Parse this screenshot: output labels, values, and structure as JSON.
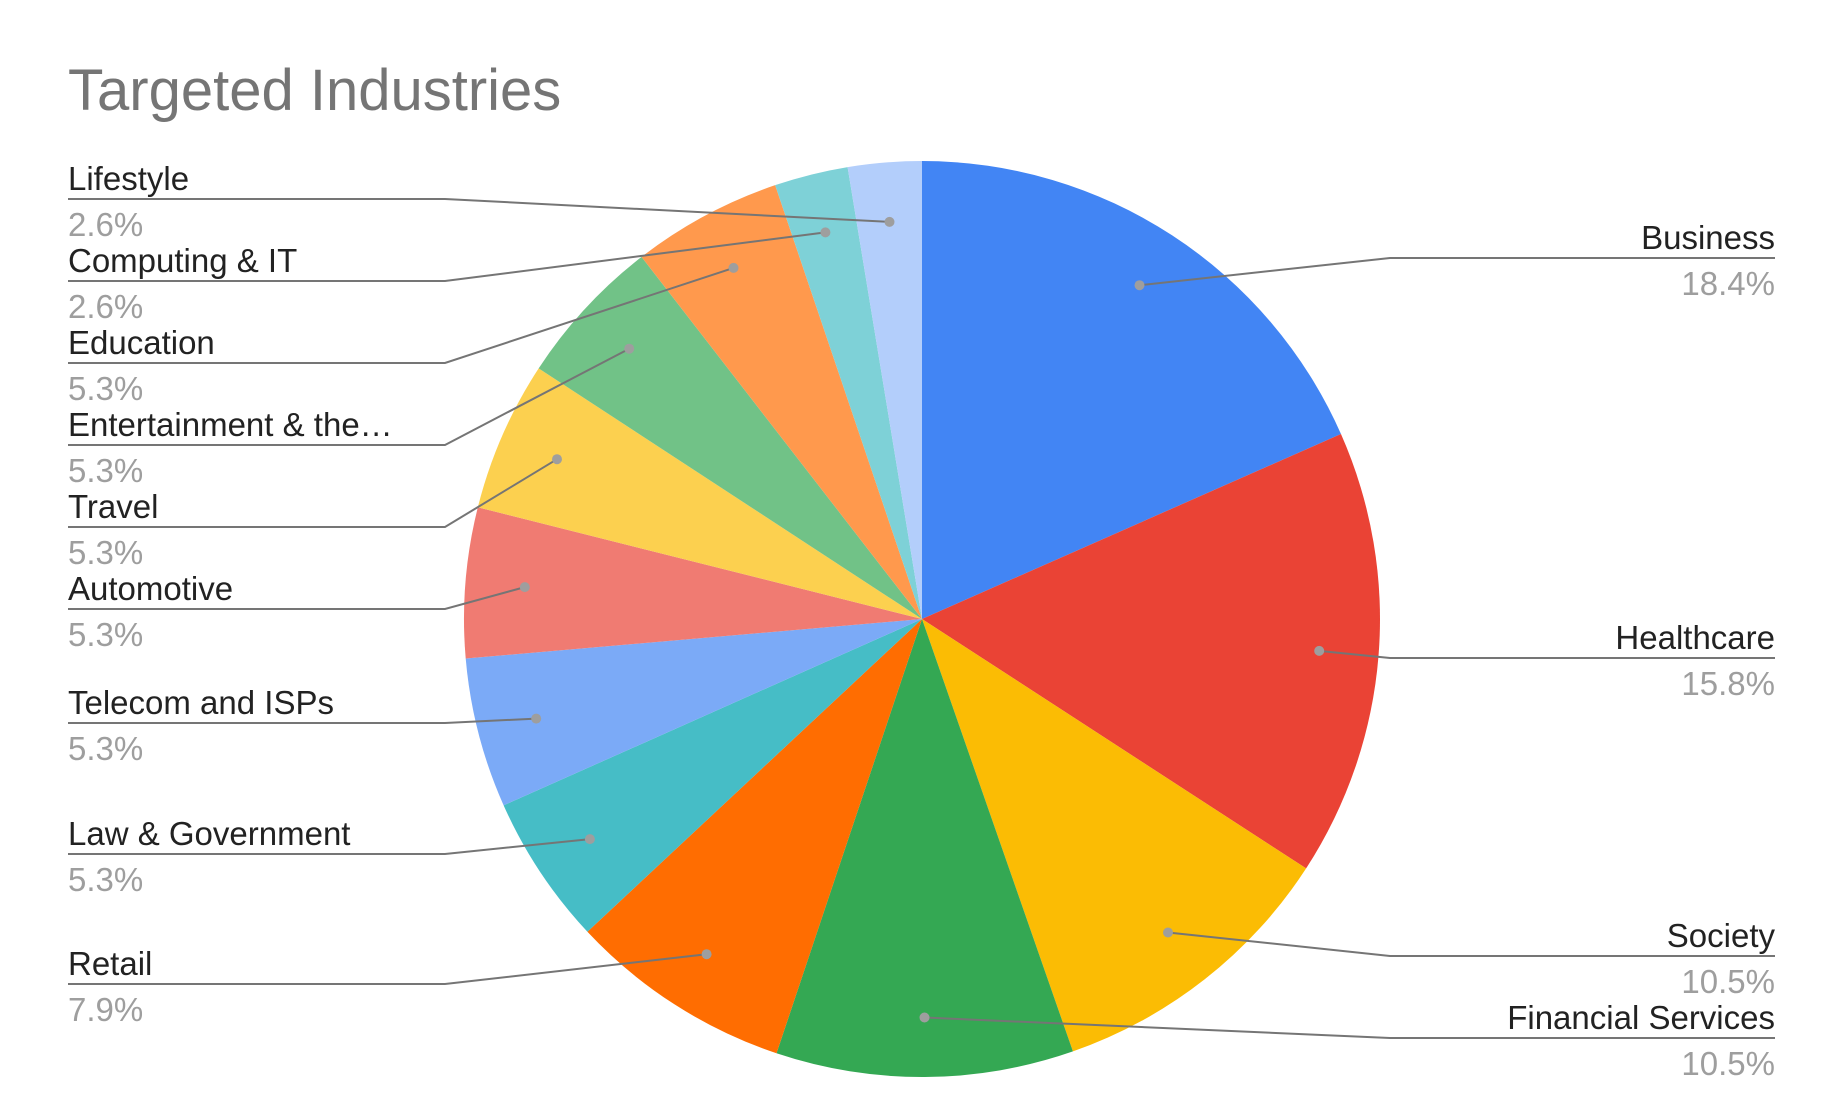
{
  "chart_data": {
    "type": "pie",
    "title": "Targeted Industries",
    "slices": [
      {
        "label": "Business",
        "value": 18.4,
        "pct_label": "18.4%",
        "color": "#4285F4"
      },
      {
        "label": "Healthcare",
        "value": 15.8,
        "pct_label": "15.8%",
        "color": "#EA4335"
      },
      {
        "label": "Society",
        "value": 10.5,
        "pct_label": "10.5%",
        "color": "#FBBC04"
      },
      {
        "label": "Financial Services",
        "value": 10.5,
        "pct_label": "10.5%",
        "color": "#34A853"
      },
      {
        "label": "Retail",
        "value": 7.9,
        "pct_label": "7.9%",
        "color": "#FF6D01"
      },
      {
        "label": "Law & Government",
        "value": 5.3,
        "pct_label": "5.3%",
        "color": "#46BDC6"
      },
      {
        "label": "Telecom and ISPs",
        "value": 5.3,
        "pct_label": "5.3%",
        "color": "#7BAAF7"
      },
      {
        "label": "Automotive",
        "value": 5.3,
        "pct_label": "5.3%",
        "color": "#F07B72"
      },
      {
        "label": "Travel",
        "value": 5.3,
        "pct_label": "5.3%",
        "color": "#FCD04F"
      },
      {
        "label": "Entertainment & the…",
        "value": 5.3,
        "pct_label": "5.3%",
        "color": "#71C287"
      },
      {
        "label": "Education",
        "value": 5.3,
        "pct_label": "5.3%",
        "color": "#FF994D"
      },
      {
        "label": "Computing & IT",
        "value": 2.6,
        "pct_label": "2.6%",
        "color": "#7ED1D7"
      },
      {
        "label": "Lifestyle",
        "value": 2.6,
        "pct_label": "2.6%",
        "color": "#B3CEFB"
      }
    ]
  }
}
